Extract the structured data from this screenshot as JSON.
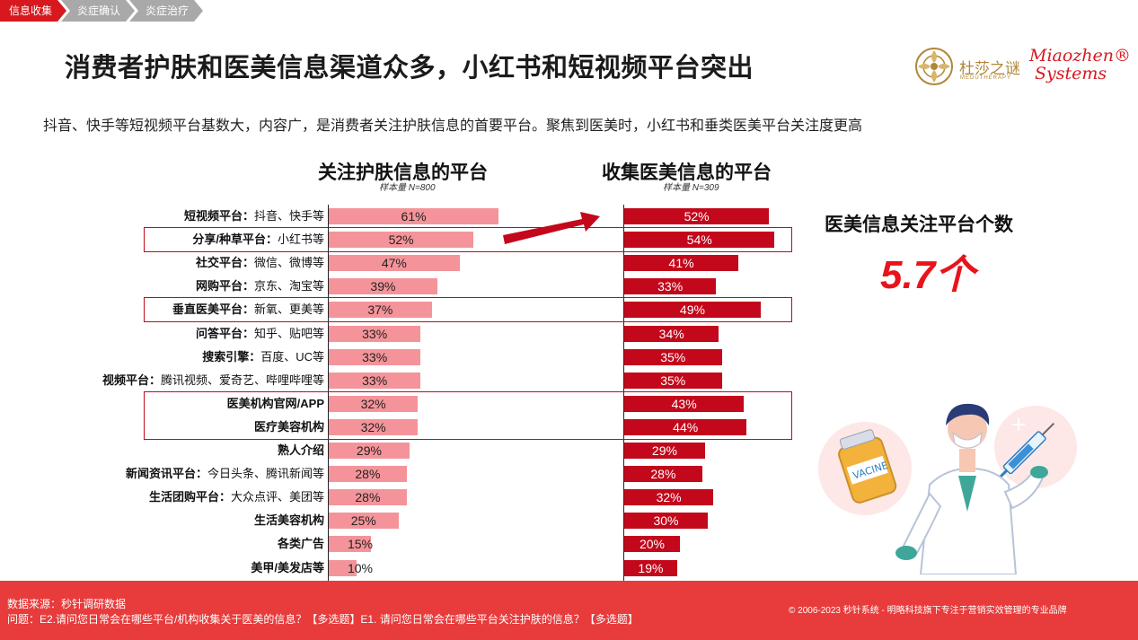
{
  "breadcrumb": [
    "信息收集",
    "炎症确认",
    "炎症治疗"
  ],
  "title": "消费者护肤和医美信息渠道众多，小红书和短视频平台突出",
  "subtitle": "抖音、快手等短视频平台基数大，内容广，是消费者关注护肤信息的首要平台。聚焦到医美时，小红书和垂类医美平台关注度更高",
  "logos": {
    "dushazhimi_cn": "杜莎之谜",
    "dushazhimi_en": "MEDUTHERAPY",
    "miaozhen_line1": "Miaozhen®",
    "miaozhen_line2": "Systems"
  },
  "left_chart": {
    "title": "关注护肤信息的平台",
    "sample": "样本量 N=800"
  },
  "right_chart": {
    "title": "收集医美信息的平台",
    "sample": "样本量 N=309"
  },
  "side": {
    "title": "医美信息关注平台个数",
    "value": "5.7个"
  },
  "colors": {
    "accent": "#d7191f",
    "left_bar": "#f4949a",
    "right_bar": "#c3081b"
  },
  "chart_data": {
    "type": "bar",
    "orientation": "horizontal",
    "categories": [
      {
        "bold": "短视频平台",
        "sep": "：",
        "detail": "抖音、快手等"
      },
      {
        "bold": "分享/种草平台",
        "sep": "：",
        "detail": "小红书等"
      },
      {
        "bold": "社交平台",
        "sep": "：",
        "detail": "微信、微博等"
      },
      {
        "bold": "网购平台",
        "sep": "：",
        "detail": "京东、淘宝等"
      },
      {
        "bold": "垂直医美平台",
        "sep": "：",
        "detail": "新氧、更美等"
      },
      {
        "bold": "问答平台",
        "sep": "：",
        "detail": "知乎、贴吧等"
      },
      {
        "bold": "搜索引擎",
        "sep": "：",
        "detail": "百度、UC等"
      },
      {
        "bold": "视频平台",
        "sep": "：",
        "detail": "腾讯视频、爱奇艺、哔哩哔哩等"
      },
      {
        "bold": "医美机构官网/APP",
        "sep": "",
        "detail": ""
      },
      {
        "bold": "医疗美容机构",
        "sep": "",
        "detail": ""
      },
      {
        "bold": "熟人介绍",
        "sep": "",
        "detail": ""
      },
      {
        "bold": "新闻资讯平台",
        "sep": "：",
        "detail": "今日头条、腾讯新闻等"
      },
      {
        "bold": "生活团购平台",
        "sep": "：",
        "detail": "大众点评、美团等"
      },
      {
        "bold": "生活美容机构",
        "sep": "",
        "detail": ""
      },
      {
        "bold": "各类广告",
        "sep": "",
        "detail": ""
      },
      {
        "bold": "美甲/美发店等",
        "sep": "",
        "detail": ""
      }
    ],
    "series": [
      {
        "name": "关注护肤信息的平台",
        "values": [
          61,
          52,
          47,
          39,
          37,
          33,
          33,
          33,
          32,
          32,
          29,
          28,
          28,
          25,
          15,
          10
        ]
      },
      {
        "name": "收集医美信息的平台",
        "values": [
          52,
          54,
          41,
          33,
          49,
          34,
          35,
          35,
          43,
          44,
          29,
          28,
          32,
          30,
          20,
          19
        ]
      }
    ],
    "unit": "%",
    "highlighted_rows": [
      [
        1
      ],
      [
        4
      ],
      [
        8,
        9
      ]
    ]
  },
  "footer": {
    "source": "数据来源：秒针调研数据",
    "question": "问题：E2.请问您日常会在哪些平台/机构收集关于医美的信息？【多选题】E1. 请问您日常会在哪些平台关注护肤的信息？【多选题】",
    "copyright": "© 2006-2023 秒针系统 - 明略科技旗下专注于营销实效管理的专业品牌"
  }
}
